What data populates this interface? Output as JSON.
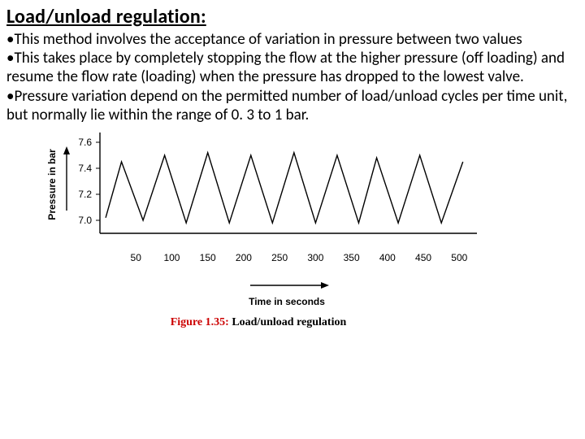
{
  "heading": "Load/unload regulation:",
  "bullets": [
    "This method involves the acceptance of variation in pressure between two values",
    "This takes place by completely stopping the flow at the higher pressure (off loading) and resume the flow rate (loading) when the pressure has dropped to the lowest valve.",
    "Pressure variation depend on the permitted number of load/unload cycles per time unit, but normally lie within the range of 0. 3 to 1 bar."
  ],
  "figure_caption_prefix": "Figure 1.35:",
  "figure_caption_title": " Load/unload regulation",
  "chart": {
    "type": "line",
    "ylabel": "Pressure in bar",
    "xlabel": "Time in seconds",
    "y_ticks": [
      7.0,
      7.2,
      7.4,
      7.6
    ],
    "y_tick_labels": [
      "7.0",
      "7.2",
      "7.4",
      "7.6"
    ],
    "x_ticks": [
      50,
      100,
      150,
      200,
      250,
      300,
      350,
      400,
      450,
      500
    ],
    "x_tick_labels": [
      "50",
      "100",
      "150",
      "200",
      "250",
      "300",
      "350",
      "400",
      "450",
      "500"
    ],
    "ylim": [
      6.9,
      7.65
    ],
    "xlim": [
      0,
      520
    ],
    "line_color": "#000000",
    "line_width": 1.4,
    "axis_color": "#000000",
    "background_color": "#ffffff",
    "series_x": [
      8,
      30,
      60,
      90,
      120,
      150,
      180,
      210,
      240,
      270,
      300,
      330,
      360,
      385,
      415,
      445,
      475,
      505
    ],
    "series_y": [
      7.02,
      7.45,
      7.0,
      7.5,
      6.98,
      7.52,
      6.98,
      7.5,
      6.98,
      7.52,
      6.98,
      7.5,
      6.98,
      7.48,
      6.98,
      7.5,
      6.98,
      7.45
    ]
  }
}
